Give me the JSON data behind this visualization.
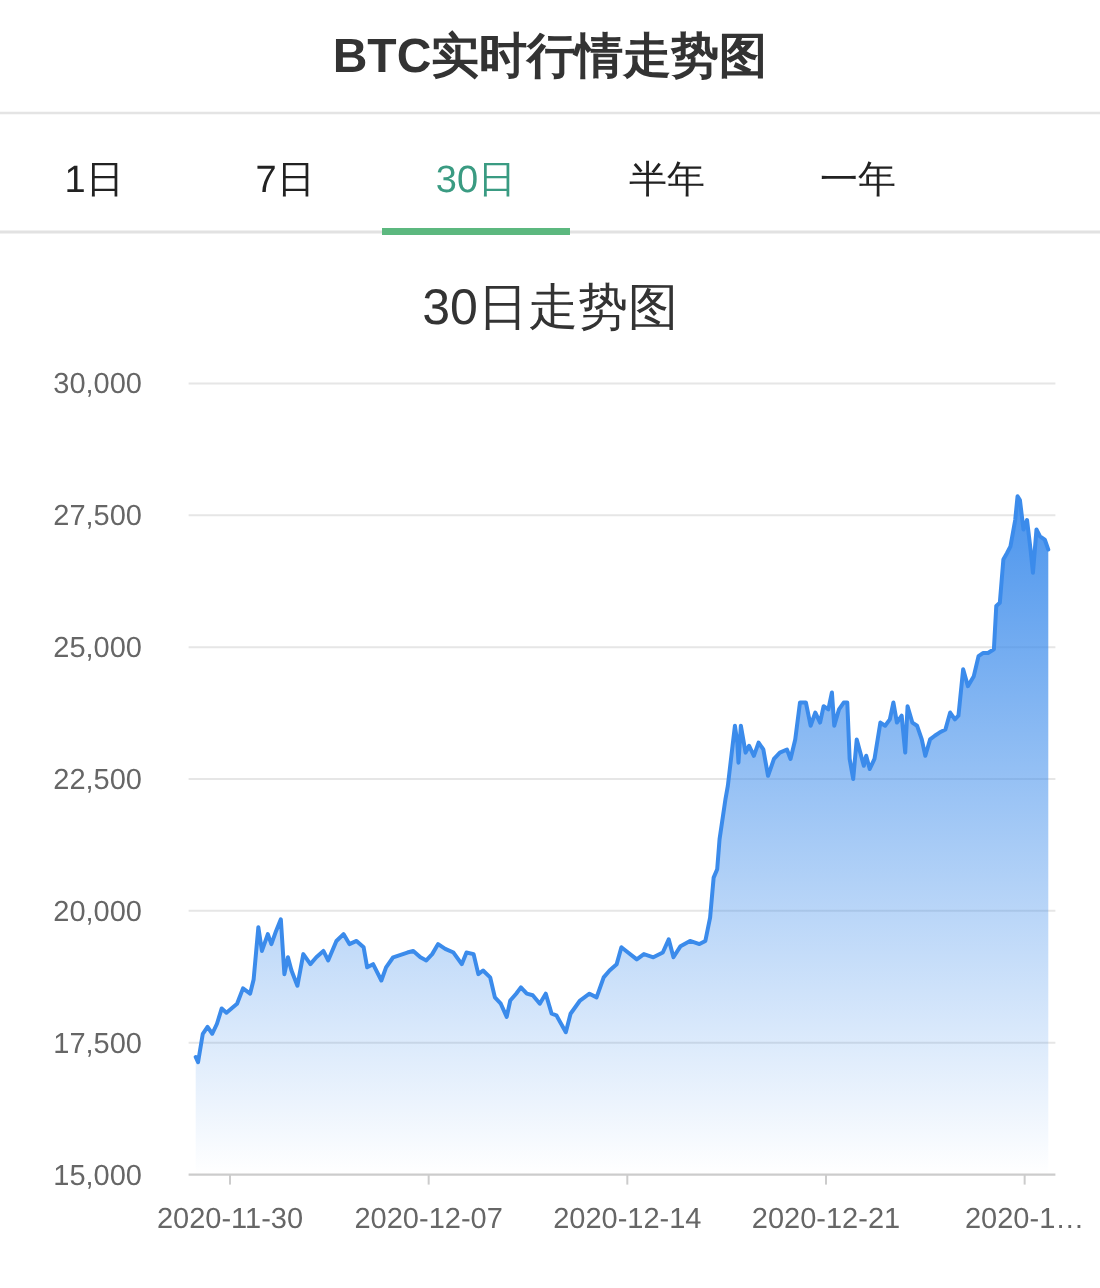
{
  "chart_data": {
    "type": "area",
    "title": "BTC实时行情走势图",
    "annotations": [
      "1日",
      "7日",
      "30日",
      "半年",
      "一年"
    ],
    "subtitle": "30日走势图",
    "x": [
      "2020-11-28T19:00",
      "2020-11-28T21:00",
      "2020-11-29T01:00",
      "2020-11-29T05:00",
      "2020-11-29T09:00",
      "2020-11-29T13:00",
      "2020-11-29T17:00",
      "2020-11-29T21:00",
      "2020-11-30T06:00",
      "2020-11-30T11:00",
      "2020-11-30T17:00",
      "2020-11-30T20:00",
      "2020-12-01T00:00",
      "2020-12-01T03:00",
      "2020-12-01T08:00",
      "2020-12-01T11:00",
      "2020-12-01T15:00",
      "2020-12-01T19:00",
      "2020-12-01T22:00",
      "2020-12-02T01:00",
      "2020-12-02T04:00",
      "2020-12-02T09:00",
      "2020-12-02T14:00",
      "2020-12-02T20:00",
      "2020-12-03T01:00",
      "2020-12-03T07:00",
      "2020-12-03T11:00",
      "2020-12-03T18:00",
      "2020-12-04T00:00",
      "2020-12-04T05:00",
      "2020-12-04T11:00",
      "2020-12-04T17:00",
      "2020-12-04T20:00",
      "2020-12-05T01:00",
      "2020-12-05T08:00",
      "2020-12-05T12:00",
      "2020-12-05T18:00",
      "2020-12-06T06:00",
      "2020-12-06T11:00",
      "2020-12-06T17:00",
      "2020-12-06T22:00",
      "2020-12-07T03:00",
      "2020-12-07T08:00",
      "2020-12-07T14:00",
      "2020-12-07T21:00",
      "2020-12-08T04:00",
      "2020-12-08T08:00",
      "2020-12-08T14:00",
      "2020-12-08T18:00",
      "2020-12-08T22:00",
      "2020-12-09T04:00",
      "2020-12-09T08:00",
      "2020-12-09T13:00",
      "2020-12-09T18:00",
      "2020-12-09T21:00",
      "2020-12-10T02:00",
      "2020-12-10T06:00",
      "2020-12-10T11:00",
      "2020-12-10T16:00",
      "2020-12-10T22:00",
      "2020-12-11T03:00",
      "2020-12-11T08:00",
      "2020-12-11T12:00",
      "2020-12-11T20:00",
      "2020-12-12T00:00",
      "2020-12-12T08:00",
      "2020-12-12T16:00",
      "2020-12-12T22:00",
      "2020-12-13T04:00",
      "2020-12-13T09:00",
      "2020-12-13T15:00",
      "2020-12-13T19:00",
      "2020-12-13T23:00",
      "2020-12-14T08:00",
      "2020-12-14T14:00",
      "2020-12-14T22:00",
      "2020-12-15T06:00",
      "2020-12-15T11:00",
      "2020-12-15T15:00",
      "2020-12-15T21:00",
      "2020-12-16T05:00",
      "2020-12-16T13:00",
      "2020-12-16T18:00",
      "2020-12-16T22:00",
      "2020-12-17T01:00",
      "2020-12-17T04:00",
      "2020-12-17T06:00",
      "2020-12-17T11:00",
      "2020-12-17T13:00",
      "2020-12-17T17:00",
      "2020-12-17T19:00",
      "2020-12-17T21:00",
      "2020-12-17T22:00",
      "2020-12-18T00:00",
      "2020-12-18T04:00",
      "2020-12-18T07:00",
      "2020-12-18T11:00",
      "2020-12-18T15:00",
      "2020-12-18T19:00",
      "2020-12-18T23:00",
      "2020-12-19T04:00",
      "2020-12-19T09:00",
      "2020-12-19T15:00",
      "2020-12-19T18:00",
      "2020-12-19T22:00",
      "2020-12-20T02:00",
      "2020-12-20T07:00",
      "2020-12-20T11:00",
      "2020-12-20T15:00",
      "2020-12-20T19:00",
      "2020-12-20T22:00",
      "2020-12-21T02:00",
      "2020-12-21T05:00",
      "2020-12-21T07:00",
      "2020-12-21T11:00",
      "2020-12-21T15:00",
      "2020-12-21T18:00",
      "2020-12-21T20:00",
      "2020-12-21T23:00",
      "2020-12-22T02:00",
      "2020-12-22T05:00",
      "2020-12-22T08:00",
      "2020-12-22T10:00",
      "2020-12-22T13:00",
      "2020-12-22T17:00",
      "2020-12-22T22:00",
      "2020-12-23T02:00",
      "2020-12-23T06:00",
      "2020-12-23T09:00",
      "2020-12-23T12:00",
      "2020-12-23T16:00",
      "2020-12-23T19:00",
      "2020-12-23T21:00",
      "2020-12-24T01:00",
      "2020-12-24T05:00",
      "2020-12-24T09:00",
      "2020-12-24T12:00",
      "2020-12-24T16:00",
      "2020-12-24T20:00",
      "2020-12-25T00:00",
      "2020-12-25T05:00",
      "2020-12-25T09:00",
      "2020-12-25T13:00",
      "2020-12-25T16:00",
      "2020-12-25T20:00",
      "2020-12-26T00:00",
      "2020-12-26T05:00",
      "2020-12-26T09:00",
      "2020-12-26T13:00",
      "2020-12-26T17:00",
      "2020-12-26T22:00",
      "2020-12-27T00:00",
      "2020-12-27T03:00",
      "2020-12-27T06:00",
      "2020-12-27T09:00",
      "2020-12-27T12:00",
      "2020-12-27T16:00",
      "2020-12-27T18:00",
      "2020-12-27T20:00",
      "2020-12-27T23:00",
      "2020-12-28T02:00",
      "2020-12-28T05:00",
      "2020-12-28T07:00",
      "2020-12-28T10:00",
      "2020-12-28T13:00",
      "2020-12-28T17:00",
      "2020-12-28T20:00"
    ],
    "series": [
      {
        "color": "#3b8beb",
        "values": [
          17230,
          17130,
          17670,
          17800,
          17670,
          17860,
          18150,
          18070,
          18240,
          18530,
          18430,
          18700,
          19690,
          19240,
          19560,
          19370,
          19620,
          19840,
          18800,
          19120,
          18870,
          18580,
          19180,
          18990,
          19120,
          19240,
          19060,
          19430,
          19560,
          19370,
          19430,
          19310,
          18930,
          18990,
          18680,
          18930,
          19120,
          19210,
          19240,
          19120,
          19060,
          19180,
          19370,
          19280,
          19210,
          18990,
          19210,
          19180,
          18800,
          18870,
          18740,
          18360,
          18240,
          17990,
          18300,
          18430,
          18550,
          18430,
          18400,
          18240,
          18430,
          18050,
          18020,
          17700,
          18050,
          18300,
          18430,
          18360,
          18740,
          18870,
          18990,
          19310,
          19240,
          19080,
          19180,
          19120,
          19210,
          19460,
          19120,
          19330,
          19430,
          19370,
          19430,
          19870,
          20630,
          20790,
          21360,
          22120,
          22370,
          23130,
          23510,
          23190,
          22810,
          23510,
          23000,
          23130,
          22940,
          23190,
          23060,
          22560,
          22880,
          23000,
          23060,
          22880,
          23250,
          23950,
          23950,
          23510,
          23760,
          23570,
          23880,
          23820,
          24140,
          23510,
          23820,
          23950,
          23950,
          22880,
          22500,
          23250,
          23000,
          22750,
          22940,
          22690,
          22880,
          23570,
          23510,
          23630,
          23950,
          23570,
          23700,
          23000,
          23880,
          23570,
          23510,
          23250,
          22940,
          23250,
          23320,
          23380,
          23440,
          23760,
          23630,
          23700,
          24580,
          24260,
          24450,
          24830,
          24890,
          24890,
          24960,
          25780,
          25840,
          26660,
          26780,
          26910,
          27410,
          27860,
          27790,
          27230,
          27410,
          26850,
          26410,
          27230,
          27100,
          27040,
          26850
        ]
      }
    ],
    "xlim": [
      "2020-11-28T13:00",
      "2020-12-29T02:00"
    ],
    "xticks": [
      "2020-11-30",
      "2020-12-07",
      "2020-12-14",
      "2020-12-21",
      {
        "value": "2020-12-28",
        "label": "2020-1…"
      }
    ],
    "ylim": [
      15000,
      30000
    ],
    "yticks": [
      {
        "value": 15000,
        "label": "15,000"
      },
      {
        "value": 17500,
        "label": "17,500"
      },
      {
        "value": 20000,
        "label": "20,000"
      },
      {
        "value": 22500,
        "label": "22,500"
      },
      {
        "value": 25000,
        "label": "25,000"
      },
      {
        "value": 27500,
        "label": "27,500"
      },
      {
        "value": 30000,
        "label": "30,000"
      }
    ],
    "grid": "y"
  }
}
